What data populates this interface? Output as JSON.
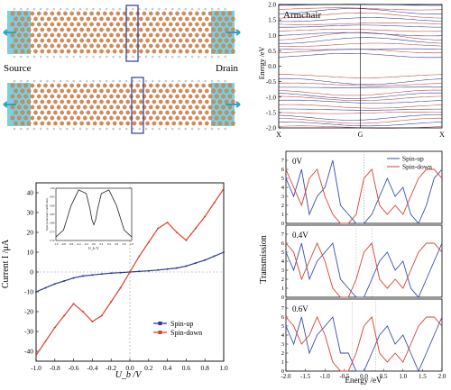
{
  "device": {
    "source_label": "Source",
    "drain_label": "Drain",
    "colors": {
      "carbon": "#d98a52",
      "hydrogen": "#c8c8d2",
      "lead": "#66c6d8",
      "box": "#2c3e8a",
      "arrow": "#2aa3c4"
    }
  },
  "band": {
    "label": "Armchair",
    "ylabel": "Energy /eV",
    "xticks": [
      "X",
      "G",
      "X"
    ],
    "yticks": [
      "2.0",
      "1.5",
      "1.0",
      "0.5",
      "0.0",
      "-0.5",
      "-1.0",
      "-1.5",
      "-2.0"
    ],
    "ylim": [
      -2.0,
      2.0
    ],
    "colors": {
      "up": "#2b3a8f",
      "down": "#c0403a"
    }
  },
  "iv": {
    "ylabel": "Current I /μA",
    "xlabel": "U_b /V",
    "xticks": [
      "-1.0",
      "-0.8",
      "-0.6",
      "-0.4",
      "-0.2",
      "0.0",
      "0.2",
      "0.4",
      "0.6",
      "0.8",
      "1.0"
    ],
    "yticks": [
      "-40",
      "-30",
      "-20",
      "-10",
      "0",
      "10",
      "20",
      "30",
      "40"
    ],
    "legend": [
      {
        "name": "Spin-up",
        "color": "#2b3a8f"
      },
      {
        "name": "Spin-down",
        "color": "#d7402f"
      }
    ],
    "inset": {
      "ylabel": "Spin polarized coefficient",
      "xlabel": "U_b /V",
      "xticks": [
        "-1.0",
        "-0.8",
        "-0.6",
        "-0.4",
        "-0.2",
        "0.0",
        "0.2",
        "0.4",
        "0.6",
        "0.8",
        "1.0"
      ],
      "yticks": [
        "1.00",
        "0.95",
        "0.90",
        "0.85",
        "0.80",
        "0.75",
        "0.70"
      ]
    }
  },
  "chart_data": [
    {
      "type": "line",
      "title": "",
      "xlabel": "U_b /V",
      "ylabel": "Current I /μA",
      "xlim": [
        -1.0,
        1.0
      ],
      "ylim": [
        -45,
        45
      ],
      "grid": false,
      "legend_placement": "bottom-right",
      "x": [
        -1.0,
        -0.9,
        -0.8,
        -0.7,
        -0.6,
        -0.5,
        -0.4,
        -0.3,
        -0.2,
        -0.1,
        0.0,
        0.1,
        0.2,
        0.3,
        0.4,
        0.5,
        0.6,
        0.7,
        0.8,
        0.9,
        1.0
      ],
      "series": [
        {
          "name": "Spin-up",
          "values": [
            -10,
            -8,
            -6,
            -4.5,
            -3,
            -2,
            -1.5,
            -1,
            -0.6,
            -0.3,
            0,
            0.3,
            0.6,
            1,
            1.5,
            2,
            3,
            4.5,
            6,
            8,
            10
          ]
        },
        {
          "name": "Spin-down",
          "values": [
            -42,
            -35,
            -28,
            -22,
            -16,
            -20,
            -25,
            -22,
            -15,
            -8,
            0,
            8,
            15,
            22,
            25,
            20,
            16,
            22,
            28,
            35,
            42
          ]
        }
      ]
    },
    {
      "type": "line",
      "title": "",
      "xlabel": "U_b /V",
      "ylabel": "Spin polarized coefficient",
      "xlim": [
        -1.0,
        1.0
      ],
      "ylim": [
        0.7,
        1.0
      ],
      "x": [
        -1.0,
        -0.8,
        -0.6,
        -0.4,
        -0.2,
        -0.1,
        -0.05,
        0.0,
        0.05,
        0.1,
        0.2,
        0.4,
        0.6,
        0.8,
        1.0
      ],
      "values": [
        0.72,
        0.76,
        0.9,
        0.99,
        0.97,
        0.88,
        0.82,
        0.79,
        0.82,
        0.88,
        0.97,
        0.99,
        0.9,
        0.76,
        0.72
      ]
    },
    {
      "type": "line",
      "title": "",
      "xlabel": "Energy /eV",
      "ylabel": "Transmission",
      "xlim": [
        -2.0,
        2.0
      ],
      "ylim": [
        0,
        8
      ],
      "legend_placement": "top-right",
      "panels": [
        {
          "label": "0V",
          "x": [
            -2.0,
            -1.8,
            -1.6,
            -1.4,
            -1.2,
            -1.0,
            -0.8,
            -0.6,
            -0.4,
            -0.2,
            0.0,
            0.2,
            0.4,
            0.6,
            0.8,
            1.0,
            1.2,
            1.4,
            1.6,
            1.8,
            2.0
          ],
          "series": [
            {
              "name": "Spin-up",
              "values": [
                5,
                3,
                6,
                1,
                3,
                4,
                7,
                2,
                1,
                0,
                0,
                1,
                3,
                5,
                3,
                4,
                1,
                0,
                2,
                5,
                6
              ]
            },
            {
              "name": "Spin-down",
              "values": [
                6,
                4,
                2,
                5,
                6,
                3,
                1,
                0,
                0,
                1,
                5,
                6,
                2,
                1,
                2,
                1,
                3,
                5,
                6,
                6,
                5
              ]
            }
          ]
        },
        {
          "label": "0.4V",
          "x": [
            -2.0,
            -1.8,
            -1.6,
            -1.4,
            -1.2,
            -1.0,
            -0.8,
            -0.6,
            -0.4,
            -0.2,
            0.0,
            0.2,
            0.4,
            0.6,
            0.8,
            1.0,
            1.2,
            1.4,
            1.6,
            1.8,
            2.0
          ],
          "series": [
            {
              "name": "Spin-up",
              "values": [
                5,
                3,
                6,
                2,
                4,
                5,
                6,
                2,
                1,
                0,
                0,
                2,
                4,
                5,
                3,
                4,
                1,
                0,
                2,
                4,
                6
              ]
            },
            {
              "name": "Spin-down",
              "values": [
                6,
                5,
                2,
                4,
                6,
                4,
                1,
                0,
                0,
                2,
                5,
                6,
                2,
                1,
                2,
                1,
                3,
                5,
                6,
                6,
                5
              ]
            }
          ]
        },
        {
          "label": "0.6V",
          "x": [
            -2.0,
            -1.8,
            -1.6,
            -1.4,
            -1.2,
            -1.0,
            -0.8,
            -0.6,
            -0.4,
            -0.2,
            0.0,
            0.2,
            0.4,
            0.6,
            0.8,
            1.0,
            1.2,
            1.4,
            1.6,
            1.8,
            2.0
          ],
          "series": [
            {
              "name": "Spin-up",
              "values": [
                5,
                3,
                6,
                2,
                4,
                5,
                6,
                2,
                2,
                0,
                0,
                2,
                4,
                5,
                3,
                4,
                2,
                0,
                2,
                4,
                6
              ]
            },
            {
              "name": "Spin-down",
              "values": [
                6,
                5,
                3,
                4,
                6,
                4,
                1,
                0,
                0,
                2,
                5,
                6,
                2,
                1,
                2,
                1,
                3,
                5,
                6,
                6,
                5
              ]
            }
          ]
        }
      ]
    }
  ],
  "trans": {
    "ylabel": "Transmission",
    "xlabel": "Energy /eV",
    "xticks": [
      "-2.0",
      "-1.5",
      "-1.0",
      "-0.5",
      "0.0",
      "0.5",
      "1.0",
      "1.5",
      "2.0"
    ],
    "yticks": [
      "0",
      "1",
      "2",
      "3",
      "4",
      "5",
      "6",
      "7"
    ],
    "legend": [
      {
        "name": "Spin-up",
        "color": "#3a4fa8"
      },
      {
        "name": "Spin-down",
        "color": "#d7402f"
      }
    ],
    "panel_labels": [
      "0V",
      "0.4V",
      "0.6V"
    ]
  }
}
